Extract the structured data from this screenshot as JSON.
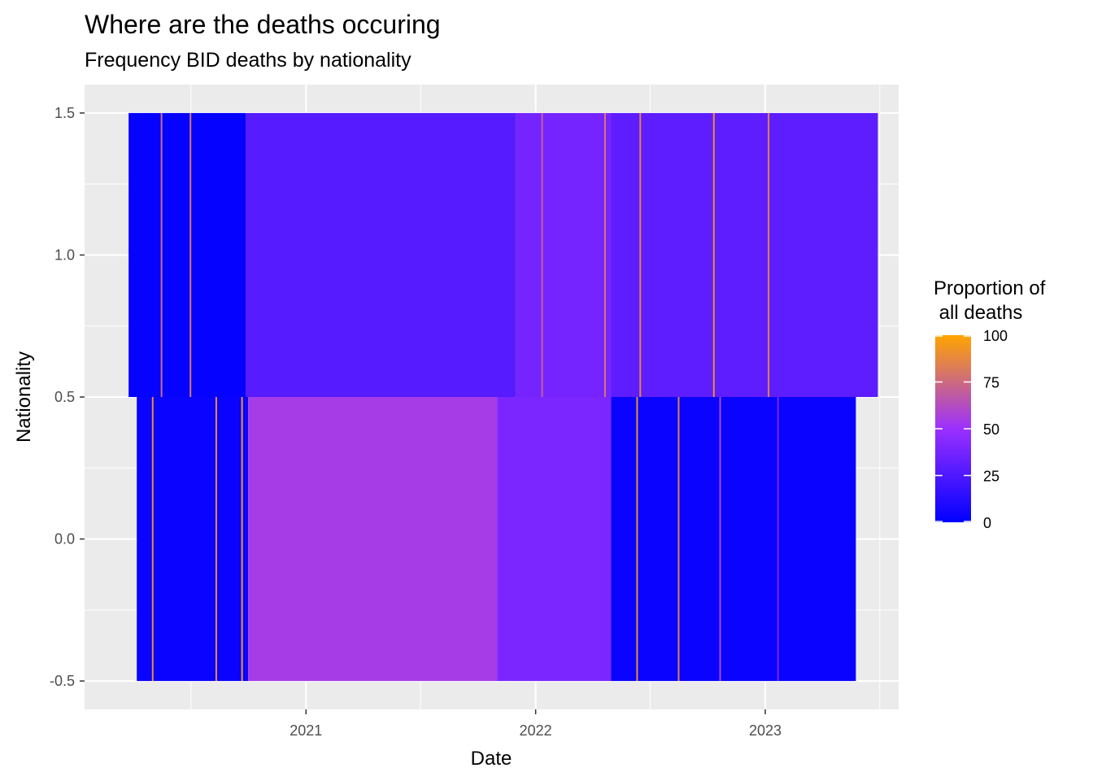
{
  "chart_data": {
    "type": "heatmap",
    "title": "Where are the deaths occuring",
    "subtitle": "Frequency BID deaths by nationality",
    "xlabel": "Date",
    "ylabel": "Nationality",
    "x_ticks": [
      "2021",
      "2022",
      "2023"
    ],
    "x_tick_dates": [
      "2021-01-01",
      "2022-01-01",
      "2023-01-01"
    ],
    "xlim": [
      "2020-01-15",
      "2023-08-01"
    ],
    "y_ticks": [
      "1.5",
      "1.0",
      "0.5",
      "0.0",
      "-0.5"
    ],
    "y_tick_values": [
      1.5,
      1.0,
      0.5,
      0.0,
      -0.5
    ],
    "ylim": [
      -0.6,
      1.6
    ],
    "grid": true,
    "legend": {
      "title_lines": [
        "Proportion of",
        " all deaths"
      ],
      "labels": [
        "100",
        "75",
        "50",
        "25",
        "0"
      ],
      "values": [
        100,
        75,
        50,
        25,
        0
      ],
      "placement": "right",
      "colors": {
        "low": "#0000ff",
        "mid": "#9b30ff",
        "high": "#ffa500"
      }
    },
    "series": [
      {
        "y_range": [
          0.5,
          1.5
        ],
        "date_range": [
          "2020-03-25",
          "2023-06-29"
        ],
        "segments": [
          {
            "from": "2020-03-25",
            "to": "2020-09-27",
            "value": 2
          },
          {
            "from": "2020-09-27",
            "to": "2021-12-01",
            "value": 28
          },
          {
            "from": "2021-12-01",
            "to": "2022-05-01",
            "value": 38
          },
          {
            "from": "2022-05-01",
            "to": "2023-06-29",
            "value": 30
          }
        ],
        "spikes": [
          {
            "date": "2020-05-15",
            "value": 75
          },
          {
            "date": "2020-06-30",
            "value": 80
          },
          {
            "date": "2022-01-10",
            "value": 70
          },
          {
            "date": "2022-04-20",
            "value": 80
          },
          {
            "date": "2022-06-15",
            "value": 85
          },
          {
            "date": "2022-10-10",
            "value": 90
          },
          {
            "date": "2023-01-05",
            "value": 85
          }
        ]
      },
      {
        "y_range": [
          -0.5,
          0.5
        ],
        "date_range": [
          "2020-04-07",
          "2023-05-25"
        ],
        "segments": [
          {
            "from": "2020-04-07",
            "to": "2020-10-01",
            "value": 3
          },
          {
            "from": "2020-10-01",
            "to": "2021-11-01",
            "value": 55
          },
          {
            "from": "2021-11-01",
            "to": "2022-05-01",
            "value": 40
          },
          {
            "from": "2022-05-01",
            "to": "2023-05-25",
            "value": 3
          }
        ],
        "spikes": [
          {
            "date": "2020-05-01",
            "value": 90
          },
          {
            "date": "2020-08-10",
            "value": 90
          },
          {
            "date": "2020-09-20",
            "value": 95
          },
          {
            "date": "2022-06-10",
            "value": 90
          },
          {
            "date": "2022-08-15",
            "value": 85
          },
          {
            "date": "2022-10-20",
            "value": 60
          },
          {
            "date": "2023-01-20",
            "value": 40
          }
        ]
      }
    ]
  }
}
